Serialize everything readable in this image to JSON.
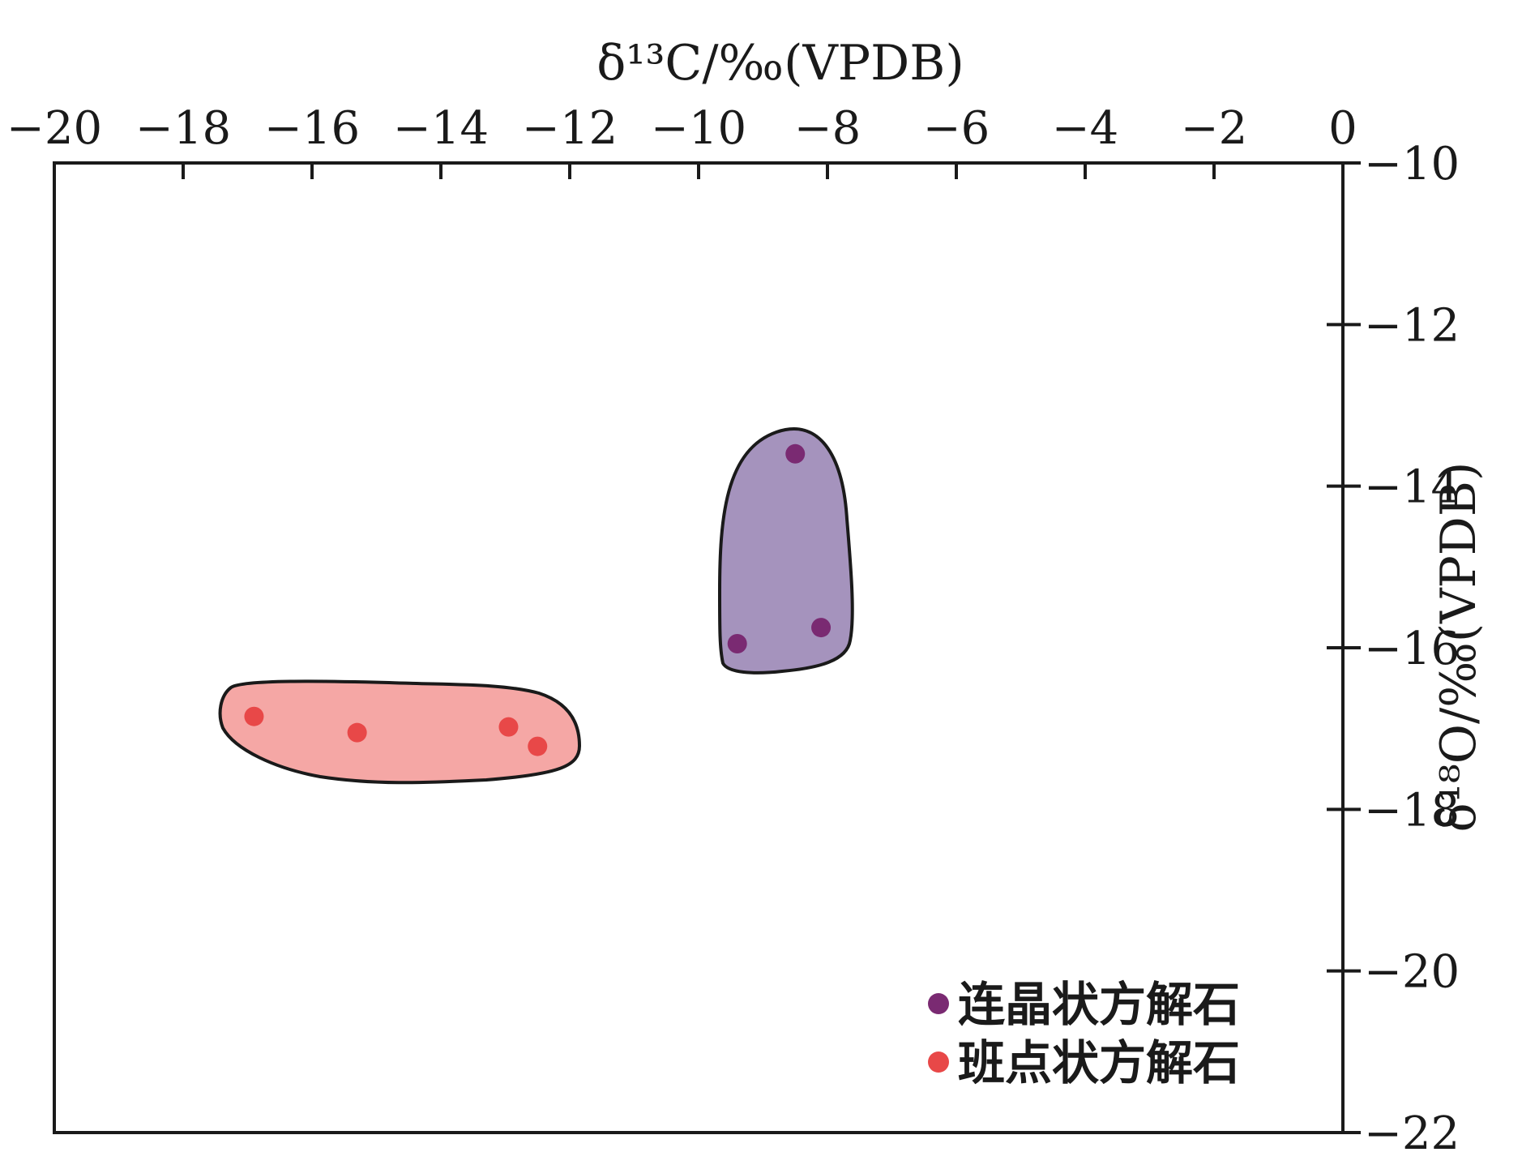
{
  "chart_data": {
    "type": "scatter",
    "xlabel": "δ¹³C/‰(VPDB)",
    "ylabel": "δ¹⁸O/‰(VPDB)",
    "xlim": [
      -20,
      0
    ],
    "ylim": [
      -22,
      -10
    ],
    "x_ticks": [
      -20,
      -18,
      -16,
      -14,
      -12,
      -10,
      -8,
      -6,
      -4,
      -2,
      0
    ],
    "y_ticks": [
      -10,
      -12,
      -14,
      -16,
      -18,
      -20,
      -22
    ],
    "x_axis_position": "top",
    "y_axis_position": "right",
    "legend_position": "bottom-right",
    "grid": false,
    "series": [
      {
        "name": "连晶状方解石",
        "color": "#7a2a72",
        "region_fill": "#a593bd",
        "points": [
          {
            "x": -8.5,
            "y": -13.6
          },
          {
            "x": -9.4,
            "y": -15.95
          },
          {
            "x": -8.1,
            "y": -15.75
          }
        ]
      },
      {
        "name": "班点状方解石",
        "color": "#e84848",
        "region_fill": "#f5a7a5",
        "points": [
          {
            "x": -16.9,
            "y": -16.85
          },
          {
            "x": -15.3,
            "y": -17.05
          },
          {
            "x": -12.95,
            "y": -16.98
          },
          {
            "x": -12.5,
            "y": -17.22
          }
        ]
      }
    ]
  }
}
